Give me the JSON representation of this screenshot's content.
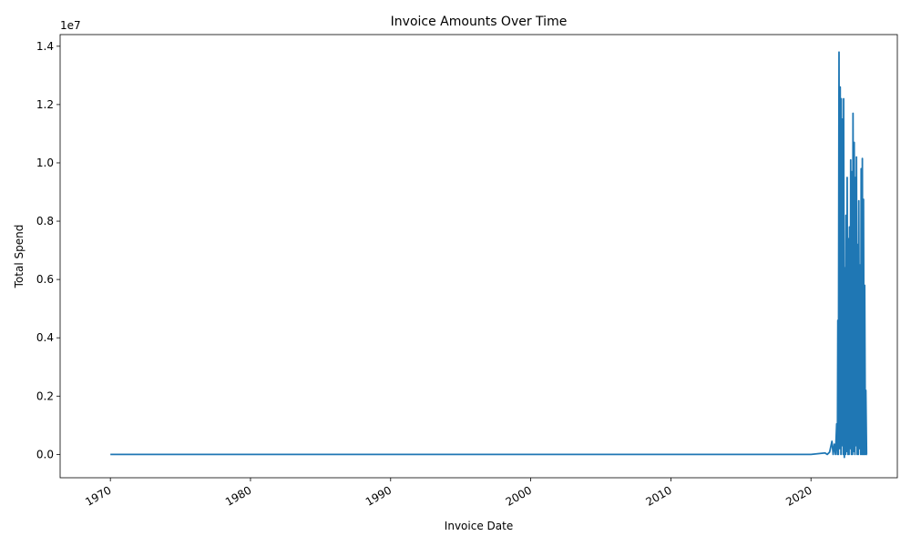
{
  "chart_data": {
    "type": "line",
    "title": "Invoice Amounts Over Time",
    "xlabel": "Invoice Date",
    "ylabel": "Total Spend",
    "y_multiplier_label": "1e7",
    "xlim": [
      "1966-06-01",
      "2026-03-01"
    ],
    "ylim": [
      -800000,
      14400000
    ],
    "x_ticks": [
      "1970",
      "1980",
      "1990",
      "2000",
      "2010",
      "2020"
    ],
    "y_ticks": [
      "0.0",
      "0.2",
      "0.4",
      "0.6",
      "0.8",
      "1.0",
      "1.2",
      "1.4"
    ],
    "y_tick_values": [
      0,
      2000000,
      4000000,
      6000000,
      8000000,
      10000000,
      12000000,
      14000000
    ],
    "grid": false,
    "legend": "none",
    "line_color": "#1f77b4",
    "series": [
      {
        "x": [
          "1970-01-01",
          "2020-01-01",
          "2021-01-01",
          "2021-03-01",
          "2021-05-01",
          "2021-07-01",
          "2021-08-01",
          "2021-09-01",
          "2021-10-01",
          "2021-11-01",
          "2021-11-20",
          "2021-12-01",
          "2021-12-15",
          "2022-01-01",
          "2022-01-15",
          "2022-02-01",
          "2022-02-20",
          "2022-03-01",
          "2022-03-20",
          "2022-04-01",
          "2022-04-20",
          "2022-05-01",
          "2022-05-20",
          "2022-06-01",
          "2022-06-20",
          "2022-07-01",
          "2022-07-20",
          "2022-08-01",
          "2022-08-20",
          "2022-09-01",
          "2022-09-20",
          "2022-10-01",
          "2022-10-20",
          "2022-11-01",
          "2022-11-20",
          "2022-12-01",
          "2022-12-20",
          "2023-01-01",
          "2023-01-20",
          "2023-02-01",
          "2023-02-20",
          "2023-03-01",
          "2023-03-20",
          "2023-04-01",
          "2023-04-20",
          "2023-05-01",
          "2023-05-20",
          "2023-06-01",
          "2023-06-20",
          "2023-07-01",
          "2023-07-20",
          "2023-08-01",
          "2023-08-20",
          "2023-09-01",
          "2023-09-20",
          "2023-10-01",
          "2023-10-20",
          "2023-11-01",
          "2023-11-20",
          "2023-12-01",
          "2023-12-20",
          "2024-01-01"
        ],
        "y": [
          0,
          0,
          50000,
          0,
          80000,
          450000,
          0,
          350000,
          0,
          1050000,
          0,
          4600000,
          0,
          13800000,
          200000,
          12600000,
          0,
          12200000,
          300000,
          11500000,
          0,
          12200000,
          -100000,
          6400000,
          0,
          8200000,
          100000,
          9500000,
          0,
          7400000,
          0,
          7800000,
          200000,
          10100000,
          0,
          9700000,
          0,
          11700000,
          100000,
          10700000,
          0,
          9500000,
          300000,
          10200000,
          0,
          7200000,
          0,
          8700000,
          200000,
          6500000,
          0,
          9800000,
          0,
          10150000,
          0,
          8750000,
          0,
          5800000,
          0,
          2200000,
          0,
          0
        ]
      }
    ]
  }
}
